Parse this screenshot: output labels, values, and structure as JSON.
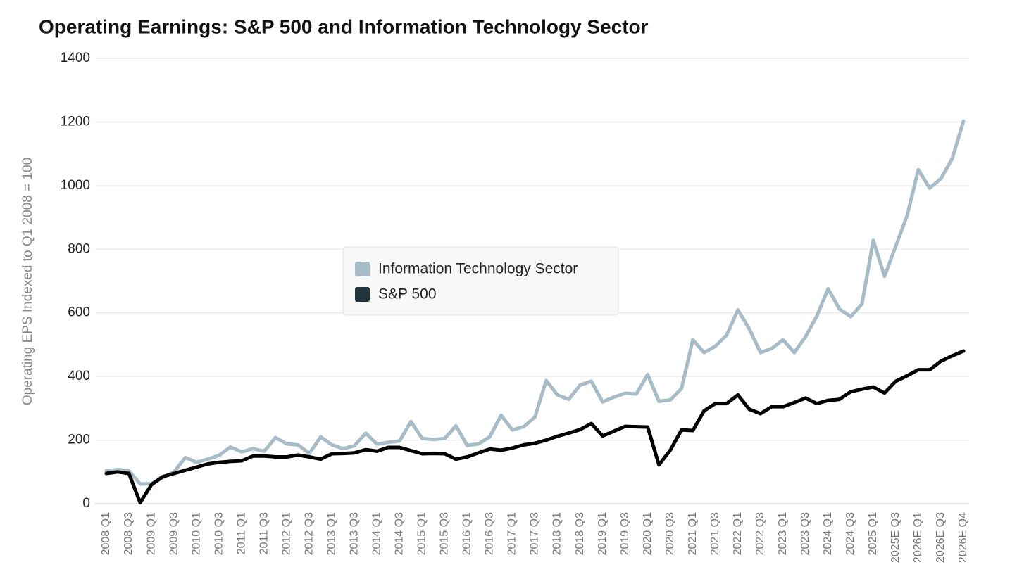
{
  "chart_data": {
    "type": "line",
    "title": "Operating Earnings: S&P 500 and Information Technology Sector",
    "y_label": "Operating EPS Indexed to Q1 2008 = 100",
    "categories": [
      "2008 Q1",
      null,
      "2008 Q3",
      null,
      "2009 Q1",
      null,
      "2009 Q3",
      null,
      "2010 Q1",
      null,
      "2010 Q3",
      null,
      "2011 Q1",
      null,
      "2011 Q3",
      null,
      "2012 Q1",
      null,
      "2012 Q3",
      null,
      "2013 Q1",
      null,
      "2013 Q3",
      null,
      "2014 Q1",
      null,
      "2014 Q3",
      null,
      "2015 Q1",
      null,
      "2015 Q3",
      null,
      "2016 Q1",
      null,
      "2016 Q3",
      null,
      "2017 Q1",
      null,
      "2017 Q3",
      null,
      "2018 Q1",
      null,
      "2018 Q3",
      null,
      "2019 Q1",
      null,
      "2019 Q3",
      null,
      "2020 Q1",
      null,
      "2020 Q3",
      null,
      "2021 Q1",
      null,
      "2021 Q3",
      null,
      "2022 Q1",
      null,
      "2022 Q3",
      null,
      "2023 Q1",
      null,
      "2023 Q3",
      null,
      "2024 Q1",
      null,
      "2024 Q3",
      null,
      "2025 Q1",
      null,
      "2025E Q3",
      null,
      "2026E Q1",
      null,
      "2026E Q3",
      null,
      "2026E Q4"
    ],
    "series": [
      {
        "name": "Information Technology Sector",
        "color": "#a7bcc6",
        "values": [
          104,
          107,
          103,
          62,
          63,
          82,
          100,
          145,
          130,
          140,
          152,
          178,
          163,
          173,
          165,
          208,
          188,
          185,
          158,
          210,
          185,
          173,
          182,
          222,
          187,
          193,
          197,
          258,
          205,
          202,
          205,
          245,
          183,
          188,
          210,
          278,
          232,
          242,
          272,
          387,
          342,
          328,
          373,
          385,
          320,
          335,
          347,
          345,
          406,
          322,
          326,
          362,
          515,
          475,
          495,
          530,
          609,
          550,
          475,
          488,
          515,
          475,
          525,
          590,
          676,
          612,
          588,
          628,
          828,
          715,
          810,
          905,
          1050,
          992,
          1022,
          1085,
          1203
        ]
      },
      {
        "name": "S&P 500",
        "color": "#000000",
        "values": [
          95,
          100,
          95,
          3,
          60,
          85,
          95,
          105,
          115,
          125,
          130,
          133,
          135,
          150,
          150,
          147,
          147,
          153,
          147,
          140,
          157,
          158,
          160,
          170,
          165,
          177,
          177,
          167,
          157,
          158,
          157,
          140,
          147,
          160,
          172,
          168,
          175,
          185,
          190,
          200,
          212,
          222,
          233,
          252,
          213,
          228,
          243,
          242,
          241,
          122,
          168,
          232,
          230,
          292,
          315,
          315,
          342,
          297,
          283,
          305,
          305,
          318,
          332,
          315,
          325,
          328,
          352,
          360,
          367,
          348,
          385,
          402,
          421,
          421,
          448,
          465,
          480
        ]
      }
    ],
    "ylim": [
      0,
      1400
    ],
    "yticks": [
      0,
      200,
      400,
      600,
      800,
      1000,
      1200,
      1400
    ],
    "grid": true,
    "legend": "center"
  }
}
